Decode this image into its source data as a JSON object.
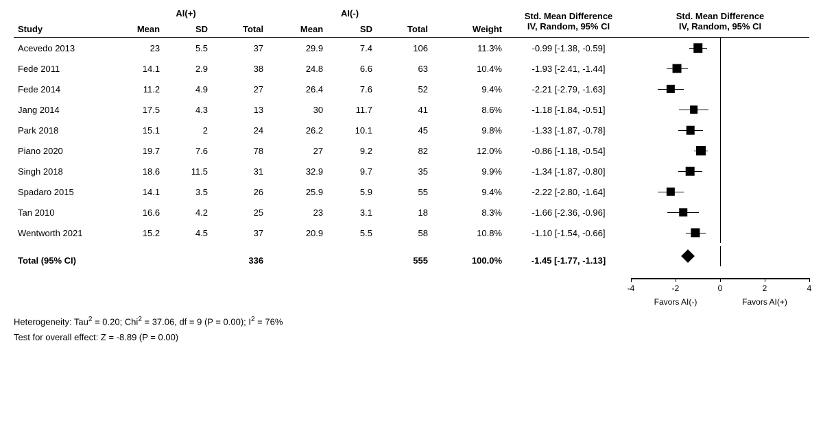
{
  "headers": {
    "group_pos": "AI(+)",
    "group_neg": "AI(-)",
    "study": "Study",
    "mean": "Mean",
    "sd": "SD",
    "total": "Total",
    "weight": "Weight",
    "effect_header_1": "Std. Mean Difference",
    "effect_header_2": "IV, Random, 95% CI",
    "plot_header_1": "Std. Mean Difference",
    "plot_header_2": "IV, Random, 95% CI"
  },
  "plot": {
    "xmin": -4,
    "xmax": 4,
    "ticks": [
      -4,
      -2,
      0,
      2,
      4
    ],
    "zero": 0,
    "favors_left": "Favors AI(-)",
    "favors_right": "Favors AI(+)",
    "marker_color": "#000000",
    "line_color": "#000000",
    "bg_color": "#ffffff"
  },
  "studies": [
    {
      "name": "Acevedo 2013",
      "mean_p": "23",
      "sd_p": "5.5",
      "tot_p": "37",
      "mean_n": "29.9",
      "sd_n": "7.4",
      "tot_n": "106",
      "weight": "11.3%",
      "eff": "-0.99 [-1.38, -0.59]",
      "pt": -0.99,
      "lo": -1.38,
      "hi": -0.59,
      "w": 11.3
    },
    {
      "name": "Fede 2011",
      "mean_p": "14.1",
      "sd_p": "2.9",
      "tot_p": "38",
      "mean_n": "24.8",
      "sd_n": "6.6",
      "tot_n": "63",
      "weight": "10.4%",
      "eff": "-1.93 [-2.41, -1.44]",
      "pt": -1.93,
      "lo": -2.41,
      "hi": -1.44,
      "w": 10.4
    },
    {
      "name": "Fede 2014",
      "mean_p": "11.2",
      "sd_p": "4.9",
      "tot_p": "27",
      "mean_n": "26.4",
      "sd_n": "7.6",
      "tot_n": "52",
      "weight": "9.4%",
      "eff": "-2.21 [-2.79, -1.63]",
      "pt": -2.21,
      "lo": -2.79,
      "hi": -1.63,
      "w": 9.4
    },
    {
      "name": "Jang 2014",
      "mean_p": "17.5",
      "sd_p": "4.3",
      "tot_p": "13",
      "mean_n": "30",
      "sd_n": "11.7",
      "tot_n": "41",
      "weight": "8.6%",
      "eff": "-1.18 [-1.84, -0.51]",
      "pt": -1.18,
      "lo": -1.84,
      "hi": -0.51,
      "w": 8.6
    },
    {
      "name": "Park 2018",
      "mean_p": "15.1",
      "sd_p": "2",
      "tot_p": "24",
      "mean_n": "26.2",
      "sd_n": "10.1",
      "tot_n": "45",
      "weight": "9.8%",
      "eff": "-1.33 [-1.87, -0.78]",
      "pt": -1.33,
      "lo": -1.87,
      "hi": -0.78,
      "w": 9.8
    },
    {
      "name": "Piano 2020",
      "mean_p": "19.7",
      "sd_p": "7.6",
      "tot_p": "78",
      "mean_n": "27",
      "sd_n": "9.2",
      "tot_n": "82",
      "weight": "12.0%",
      "eff": "-0.86 [-1.18, -0.54]",
      "pt": -0.86,
      "lo": -1.18,
      "hi": -0.54,
      "w": 12.0
    },
    {
      "name": "Singh 2018",
      "mean_p": "18.6",
      "sd_p": "11.5",
      "tot_p": "31",
      "mean_n": "32.9",
      "sd_n": "9.7",
      "tot_n": "35",
      "weight": "9.9%",
      "eff": "-1.34 [-1.87, -0.80]",
      "pt": -1.34,
      "lo": -1.87,
      "hi": -0.8,
      "w": 9.9
    },
    {
      "name": "Spadaro 2015",
      "mean_p": "14.1",
      "sd_p": "3.5",
      "tot_p": "26",
      "mean_n": "25.9",
      "sd_n": "5.9",
      "tot_n": "55",
      "weight": "9.4%",
      "eff": "-2.22 [-2.80, -1.64]",
      "pt": -2.22,
      "lo": -2.8,
      "hi": -1.64,
      "w": 9.4
    },
    {
      "name": "Tan 2010",
      "mean_p": "16.6",
      "sd_p": "4.2",
      "tot_p": "25",
      "mean_n": "23",
      "sd_n": "3.1",
      "tot_n": "18",
      "weight": "8.3%",
      "eff": "-1.66 [-2.36, -0.96]",
      "pt": -1.66,
      "lo": -2.36,
      "hi": -0.96,
      "w": 8.3
    },
    {
      "name": "Wentworth 2021",
      "mean_p": "15.2",
      "sd_p": "4.5",
      "tot_p": "37",
      "mean_n": "20.9",
      "sd_n": "5.5",
      "tot_n": "58",
      "weight": "10.8%",
      "eff": "-1.10 [-1.54, -0.66]",
      "pt": -1.1,
      "lo": -1.54,
      "hi": -0.66,
      "w": 10.8
    }
  ],
  "total": {
    "label": "Total (95% CI)",
    "tot_p": "336",
    "tot_n": "555",
    "weight": "100.0%",
    "eff": "-1.45 [-1.77, -1.13]",
    "pt": -1.45,
    "lo": -1.77,
    "hi": -1.13
  },
  "footer": {
    "heterogeneity": "Heterogeneity: Tau² = 0.20; Chi² = 37.06, df = 9 (P = 0.00); I² = 76%",
    "overall": "Test for overall effect: Z = -8.89 (P = 0.00)"
  }
}
